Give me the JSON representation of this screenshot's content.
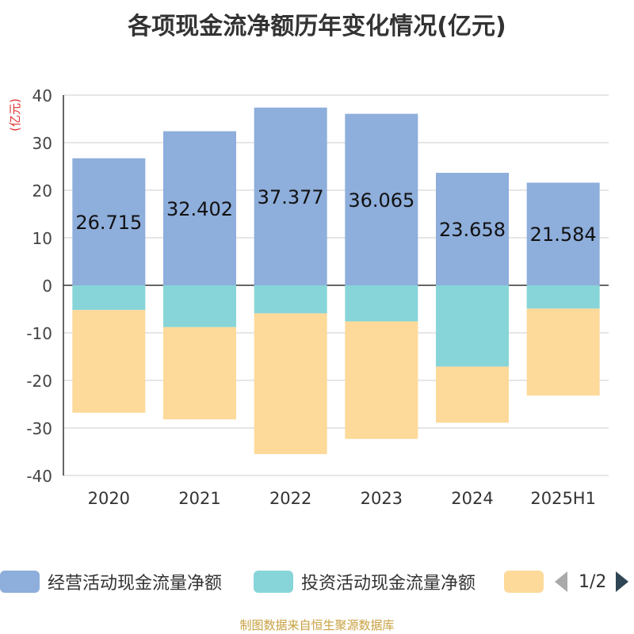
{
  "title": "各项现金流净额历年变化情况(亿元)",
  "source": "制图数据来自恒生聚源数据库",
  "chart_data": {
    "type": "bar",
    "stacked": true,
    "title": "各项现金流净额历年变化情况(亿元)",
    "ylabel": "(亿元)",
    "ylim": [
      -40,
      40
    ],
    "yticks": [
      40,
      30,
      20,
      10,
      0,
      -10,
      -20,
      -30,
      -40
    ],
    "grid": true,
    "legend_position": "bottom",
    "categories": [
      "2020",
      "2021",
      "2022",
      "2023",
      "2024",
      "2025H1"
    ],
    "series": [
      {
        "name": "经营活动现金流量净额",
        "color": "#8eaedb",
        "values": [
          26.715,
          32.402,
          37.377,
          36.065,
          23.658,
          21.584
        ],
        "labels": [
          "26.715",
          "32.402",
          "37.377",
          "36.065",
          "23.658",
          "21.584"
        ]
      },
      {
        "name": "投资活动现金流量净额",
        "color": "#87d5d8",
        "values": [
          -5.2,
          -8.8,
          -5.9,
          -7.6,
          -17.1,
          -4.9
        ]
      },
      {
        "name": "",
        "color": "#fdd99a",
        "values": [
          -21.6,
          -19.4,
          -29.6,
          -24.7,
          -11.8,
          -18.3
        ]
      }
    ]
  },
  "legend": {
    "items": [
      {
        "label": "经营活动现金流量净额",
        "color": "#8eaedb"
      },
      {
        "label": "投资活动现金流量净额",
        "color": "#87d5d8"
      },
      {
        "label": "",
        "color": "#fdd99a"
      }
    ],
    "page": "1/2"
  }
}
